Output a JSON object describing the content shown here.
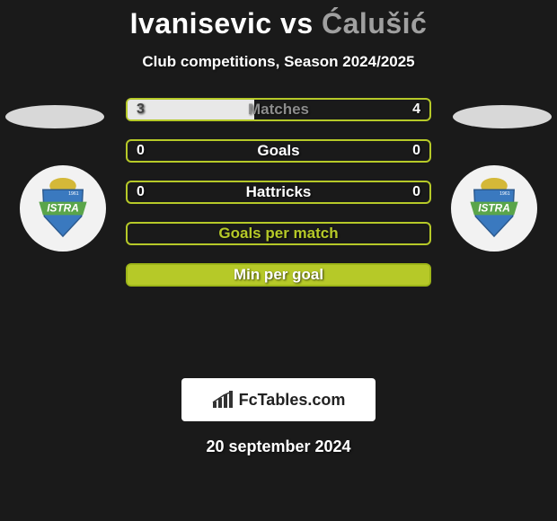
{
  "header": {
    "player1": "Ivanisevic",
    "vs": "vs",
    "player2": "Ćalušić",
    "subtitle": "Club competitions, Season 2024/2025"
  },
  "colors": {
    "accent_green": "#b6c928",
    "accent_green_border": "#9db518",
    "bg": "#1a1a1a",
    "label_active": "#ffffff",
    "label_muted": "#8c8c8c",
    "fill_white": "#e8e8e8"
  },
  "stats": [
    {
      "label": "Matches",
      "left_val": "3",
      "right_val": "4",
      "left_pct": 42,
      "left_fill_color": "#e8e8e8",
      "border_color": "#b6c928",
      "label_color": "#8c8c8c"
    },
    {
      "label": "Goals",
      "left_val": "0",
      "right_val": "0",
      "left_pct": 0,
      "left_fill_color": "#e8e8e8",
      "border_color": "#b6c928",
      "label_color": "#ffffff"
    },
    {
      "label": "Hattricks",
      "left_val": "0",
      "right_val": "0",
      "left_pct": 0,
      "left_fill_color": "#e8e8e8",
      "border_color": "#b6c928",
      "label_color": "#ffffff"
    },
    {
      "label": "Goals per match",
      "left_val": "",
      "right_val": "",
      "left_pct": 0,
      "left_fill_color": "#e8e8e8",
      "border_color": "#b6c928",
      "label_color": "#b6c928"
    },
    {
      "label": "Min per goal",
      "left_val": "",
      "right_val": "",
      "left_pct": 100,
      "left_fill_color": "#b6c928",
      "border_color": "#9db518",
      "label_color": "#ffffff"
    }
  ],
  "brand": {
    "text": "FcTables.com"
  },
  "date": "20 september 2024",
  "crest": {
    "shield_fill": "#3a79bf",
    "shield_border": "#2c5a8f",
    "banner_fill": "#5aa54a",
    "ball_fill": "#d4b838",
    "text": "ISTRA",
    "subtext": "1961"
  }
}
